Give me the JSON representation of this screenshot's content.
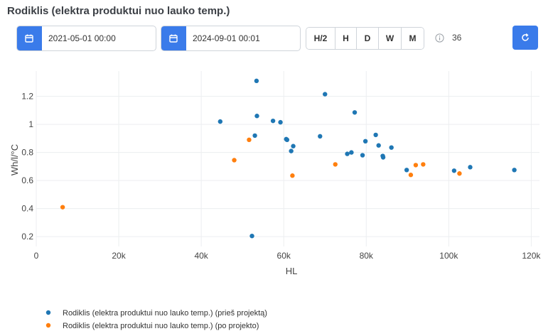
{
  "header": {
    "title": "Rodiklis (elektra produktui nuo lauko temp.)"
  },
  "toolbar": {
    "date_from": "2021-05-01 00:00",
    "date_to": "2024-09-01 00:01",
    "periods": [
      "H/2",
      "H",
      "D",
      "W",
      "M"
    ],
    "count": "36"
  },
  "colors": {
    "accent": "#3a7bea",
    "series_before": "#1f77b4",
    "series_after": "#ff7f0e"
  },
  "chart_data": {
    "type": "scatter",
    "title": "",
    "xlabel": "HL",
    "ylabel": "Wh/l/°C",
    "xlim": [
      0,
      122000
    ],
    "ylim": [
      0.13,
      1.38
    ],
    "x_ticks": [
      0,
      20000,
      40000,
      60000,
      80000,
      100000,
      120000
    ],
    "x_tick_labels": [
      "0",
      "20k",
      "40k",
      "60k",
      "80k",
      "100k",
      "120k"
    ],
    "y_ticks": [
      0.2,
      0.4,
      0.6,
      0.8,
      1,
      1.2
    ],
    "y_tick_labels": [
      "0.2",
      "0.4",
      "0.6",
      "0.8",
      "1",
      "1.2"
    ],
    "grid": true,
    "legend_position": "bottom-left",
    "series": [
      {
        "name": "Rodiklis (elektra produktui nuo lauko temp.) (prieš projektą)",
        "points": [
          [
            44600,
            1.02
          ],
          [
            52300,
            0.205
          ],
          [
            53000,
            0.92
          ],
          [
            53400,
            1.31
          ],
          [
            53500,
            1.06
          ],
          [
            57400,
            1.025
          ],
          [
            59200,
            1.015
          ],
          [
            60600,
            0.895
          ],
          [
            60800,
            0.89
          ],
          [
            61800,
            0.81
          ],
          [
            62300,
            0.845
          ],
          [
            68800,
            0.915
          ],
          [
            70000,
            1.215
          ],
          [
            75400,
            0.79
          ],
          [
            76400,
            0.8
          ],
          [
            77200,
            1.085
          ],
          [
            79100,
            0.78
          ],
          [
            79800,
            0.88
          ],
          [
            82300,
            0.925
          ],
          [
            83000,
            0.85
          ],
          [
            84000,
            0.775
          ],
          [
            84100,
            0.765
          ],
          [
            86100,
            0.835
          ],
          [
            89800,
            0.675
          ],
          [
            101300,
            0.67
          ],
          [
            105200,
            0.695
          ],
          [
            115900,
            0.675
          ]
        ]
      },
      {
        "name": "Rodiklis (elektra produktui nuo lauko temp.) (po projekto)",
        "points": [
          [
            6400,
            0.41
          ],
          [
            48000,
            0.745
          ],
          [
            51600,
            0.89
          ],
          [
            62100,
            0.635
          ],
          [
            72500,
            0.715
          ],
          [
            90800,
            0.64
          ],
          [
            92000,
            0.71
          ],
          [
            93800,
            0.715
          ],
          [
            102600,
            0.65
          ]
        ]
      }
    ]
  }
}
